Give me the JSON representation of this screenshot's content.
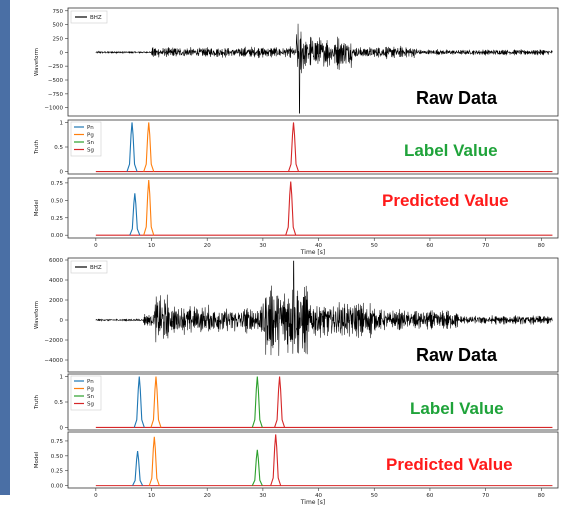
{
  "colors": {
    "side_strip": "#4a6fa5",
    "waveform": "#000000",
    "Pn": "#1f77b4",
    "Pg": "#ff7f0e",
    "Sn": "#2ca02c",
    "Sg": "#d62728",
    "label_text": "#1fa33a",
    "predicted_text": "#ff1a1a",
    "raw_text": "#000000"
  },
  "chart_data": [
    {
      "type": "line",
      "panel": "raw",
      "event": 1,
      "ylabel": "Waveform",
      "legend": [
        "BHZ"
      ],
      "legend_position": "top-left",
      "overlay_text": "Raw Data",
      "xlim": [
        -5,
        83
      ],
      "ylim": [
        -1150,
        800
      ],
      "yticks": [
        750,
        500,
        250,
        0,
        -250,
        -500,
        -750,
        -1000
      ],
      "waveform": {
        "noise_amplitude": 25,
        "segments": [
          {
            "start": 10,
            "end": 36,
            "amplitude": 130
          },
          {
            "start": 36,
            "end": 37.5,
            "amplitude": 750
          },
          {
            "start": 37.5,
            "end": 46,
            "amplitude": 380
          },
          {
            "start": 46,
            "end": 58,
            "amplitude": 150
          },
          {
            "start": 58,
            "end": 82,
            "amplitude": 70
          }
        ],
        "peak": {
          "x": 36.6,
          "y": -1100
        }
      }
    },
    {
      "type": "line",
      "panel": "truth",
      "event": 1,
      "ylabel": "Truth",
      "legend": [
        "Pn",
        "Pg",
        "Sn",
        "Sg"
      ],
      "legend_position": "top-left",
      "overlay_text": "Label Value",
      "xlim": [
        -5,
        83
      ],
      "ylim": [
        -0.05,
        1.05
      ],
      "yticks": [
        1.0,
        0.5,
        0.0
      ],
      "picks": [
        {
          "phase": "Pn",
          "x": 6.5,
          "height": 1.0
        },
        {
          "phase": "Pg",
          "x": 9.5,
          "height": 1.0
        },
        {
          "phase": "Sg",
          "x": 35.5,
          "height": 1.0
        }
      ]
    },
    {
      "type": "line",
      "panel": "model",
      "event": 1,
      "ylabel": "Model",
      "overlay_text": "Predicted Value",
      "xlabel": "Time [s]",
      "xlim": [
        -5,
        83
      ],
      "ylim": [
        -0.04,
        0.82
      ],
      "yticks": [
        0.75,
        0.5,
        0.25,
        0.0
      ],
      "yticklabels": [
        "0.75",
        "0.50",
        "0.25",
        "0.00"
      ],
      "xticks": [
        0,
        10,
        20,
        30,
        40,
        50,
        60,
        70,
        80
      ],
      "picks": [
        {
          "phase": "Pn",
          "x": 7.0,
          "height": 0.6
        },
        {
          "phase": "Pg",
          "x": 9.5,
          "height": 0.79
        },
        {
          "phase": "Sg",
          "x": 35.0,
          "height": 0.77
        }
      ]
    },
    {
      "type": "line",
      "panel": "raw",
      "event": 2,
      "ylabel": "Waveform",
      "legend": [
        "BHZ"
      ],
      "legend_position": "top-left",
      "overlay_text": "Raw Data",
      "xlim": [
        -5,
        83
      ],
      "ylim": [
        -5200,
        6200
      ],
      "yticks": [
        6000,
        4000,
        2000,
        0,
        -2000,
        -4000
      ],
      "waveform": {
        "noise_amplitude": 120,
        "segments": [
          {
            "start": 8.5,
            "end": 10.5,
            "amplitude": 900
          },
          {
            "start": 10.5,
            "end": 13,
            "amplitude": 3800
          },
          {
            "start": 13,
            "end": 30,
            "amplitude": 1900
          },
          {
            "start": 30,
            "end": 38,
            "amplitude": 4800
          },
          {
            "start": 38,
            "end": 50,
            "amplitude": 2500
          },
          {
            "start": 50,
            "end": 65,
            "amplitude": 1300
          },
          {
            "start": 65,
            "end": 82,
            "amplitude": 600
          }
        ],
        "peak": {
          "x": 35.5,
          "y": 5900
        }
      }
    },
    {
      "type": "line",
      "panel": "truth",
      "event": 2,
      "ylabel": "Truth",
      "legend": [
        "Pn",
        "Pg",
        "Sn",
        "Sg"
      ],
      "legend_position": "top-left",
      "overlay_text": "Label Value",
      "xlim": [
        -5,
        83
      ],
      "ylim": [
        -0.05,
        1.05
      ],
      "yticks": [
        1.0,
        0.5,
        0.0
      ],
      "picks": [
        {
          "phase": "Pn",
          "x": 7.8,
          "height": 1.0
        },
        {
          "phase": "Pg",
          "x": 10.8,
          "height": 1.0
        },
        {
          "phase": "Sn",
          "x": 29.0,
          "height": 1.0
        },
        {
          "phase": "Sg",
          "x": 33.0,
          "height": 1.0
        }
      ]
    },
    {
      "type": "line",
      "panel": "model",
      "event": 2,
      "ylabel": "Model",
      "overlay_text": "Predicted Value",
      "xlabel": "Time [s]",
      "xlim": [
        -5,
        83
      ],
      "ylim": [
        -0.04,
        0.9
      ],
      "yticks": [
        0.75,
        0.5,
        0.25,
        0.0
      ],
      "yticklabels": [
        "0.75",
        "0.50",
        "0.25",
        "0.00"
      ],
      "xticks": [
        0,
        10,
        20,
        30,
        40,
        50,
        60,
        70,
        80
      ],
      "picks": [
        {
          "phase": "Pn",
          "x": 7.5,
          "height": 0.58
        },
        {
          "phase": "Pg",
          "x": 10.5,
          "height": 0.82
        },
        {
          "phase": "Sn",
          "x": 29.0,
          "height": 0.6
        },
        {
          "phase": "Sg",
          "x": 32.3,
          "height": 0.86
        }
      ]
    }
  ]
}
